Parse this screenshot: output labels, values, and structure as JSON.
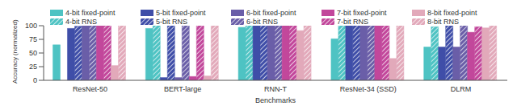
{
  "chart_data": {
    "type": "bar",
    "x_label": "Benchmarks",
    "y_label": "Accuracy (normalized)",
    "categories": [
      "ResNet-50",
      "BERT-large",
      "RNN-T",
      "ResNet-34 (SSD)",
      "DLRM"
    ],
    "ylim": [
      0,
      100
    ],
    "yticks": [
      0,
      25,
      50,
      75,
      100
    ],
    "grid": false,
    "legend": "top",
    "series": [
      {
        "name": "4-bit fixed-point",
        "color": "#4ec3c3",
        "line_style": "solid",
        "values": [
          65,
          95,
          97,
          76,
          61
        ]
      },
      {
        "name": "4-bit RNS",
        "color": "#4ec3c3",
        "line_style": "hatched",
        "values": [
          0,
          100,
          100,
          100,
          98
        ]
      },
      {
        "name": "5-bit fixed-point",
        "color": "#3f4ea8",
        "line_style": "solid",
        "values": [
          95,
          5,
          100,
          100,
          61
        ]
      },
      {
        "name": "5-bit RNS",
        "color": "#3f4ea8",
        "line_style": "hatched",
        "values": [
          99,
          100,
          100,
          100,
          100
        ]
      },
      {
        "name": "6-bit fixed-point",
        "color": "#6a5ea8",
        "line_style": "solid",
        "values": [
          100,
          5,
          100,
          100,
          61
        ]
      },
      {
        "name": "6-bit RNS",
        "color": "#6a5ea8",
        "line_style": "hatched",
        "values": [
          100,
          100,
          100,
          100,
          100
        ]
      },
      {
        "name": "7-bit fixed-point",
        "color": "#c2479b",
        "line_style": "solid",
        "values": [
          100,
          7,
          100,
          100,
          88
        ]
      },
      {
        "name": "7-bit RNS",
        "color": "#c2479b",
        "line_style": "hatched",
        "values": [
          100,
          100,
          100,
          100,
          98
        ]
      },
      {
        "name": "8-bit fixed-point",
        "color": "#e2a9ba",
        "line_style": "solid",
        "values": [
          27,
          8,
          91,
          40,
          96
        ]
      },
      {
        "name": "8-bit RNS",
        "color": "#e2a9ba",
        "line_style": "hatched",
        "values": [
          100,
          100,
          100,
          100,
          100
        ]
      }
    ]
  }
}
